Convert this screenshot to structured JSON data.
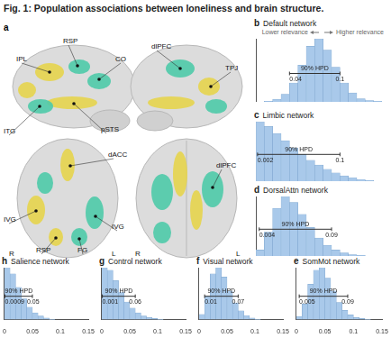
{
  "title": "Fig. 1: Population associations between loneliness and brain structure.",
  "panel_a": {
    "letter": "a",
    "labels": [
      "IPL",
      "RSP",
      "CO",
      "pSTS",
      "dlPFC",
      "TPJ",
      "ITG",
      "dACC",
      "dlPFC",
      "IVG",
      "IVG",
      "RSP",
      "FG",
      "R",
      "L",
      "R",
      "L"
    ]
  },
  "chart_data": [
    {
      "panel": "b",
      "type": "histogram",
      "title": "Default network",
      "annotations": [
        "Lower relevance",
        "Higher relevance"
      ],
      "bins": [
        0,
        0.01,
        0.02,
        0.03,
        0.04,
        0.05,
        0.06,
        0.07,
        0.08,
        0.09,
        0.1,
        0.11,
        0.12,
        0.13,
        0.14,
        0.15
      ],
      "counts": [
        0,
        1,
        4,
        12,
        30,
        58,
        88,
        100,
        82,
        55,
        30,
        14,
        5,
        2,
        1
      ],
      "color": "#a9c9ea",
      "xlim": [
        0,
        0.15
      ],
      "ylim": [
        0,
        100
      ],
      "tick_labels": false,
      "grid": false,
      "hpd": {
        "label": "90% HPD",
        "low": 0.04,
        "high": 0.1
      }
    },
    {
      "panel": "c",
      "type": "histogram",
      "title": "Limbic network",
      "bins": [
        0,
        0.01,
        0.02,
        0.03,
        0.04,
        0.05,
        0.06,
        0.07,
        0.08,
        0.09,
        0.1,
        0.11,
        0.12,
        0.13,
        0.14,
        0.15
      ],
      "counts": [
        100,
        92,
        80,
        68,
        56,
        45,
        35,
        27,
        20,
        14,
        9,
        6,
        3,
        1,
        0
      ],
      "color": "#a9c9ea",
      "xlim": [
        0,
        0.15
      ],
      "ylim": [
        0,
        100
      ],
      "tick_labels": false,
      "grid": false,
      "hpd": {
        "label": "90% HPD",
        "low": 0.002,
        "high": 0.1
      }
    },
    {
      "panel": "d",
      "type": "histogram",
      "title": "DorsalAttn network",
      "bins": [
        0,
        0.01,
        0.02,
        0.03,
        0.04,
        0.05,
        0.06,
        0.07,
        0.08,
        0.09,
        0.1,
        0.11,
        0.12,
        0.13,
        0.14,
        0.15
      ],
      "counts": [
        10,
        40,
        80,
        100,
        90,
        70,
        48,
        30,
        18,
        10,
        5,
        2,
        1,
        0,
        0
      ],
      "color": "#a9c9ea",
      "xlim": [
        0,
        0.15
      ],
      "ylim": [
        0,
        100
      ],
      "tick_labels": false,
      "grid": false,
      "hpd": {
        "label": "90% HPD",
        "low": 0.004,
        "high": 0.09
      }
    },
    {
      "panel": "h",
      "type": "histogram",
      "title": "Salience network",
      "bins": [
        0,
        0.01,
        0.02,
        0.03,
        0.04,
        0.05,
        0.06,
        0.07,
        0.08,
        0.09,
        0.1,
        0.11,
        0.12,
        0.13,
        0.14,
        0.15
      ],
      "counts": [
        100,
        88,
        62,
        40,
        24,
        13,
        7,
        3,
        1,
        0,
        0,
        0,
        0,
        0,
        0
      ],
      "color": "#a9c9ea",
      "xlim": [
        0,
        0.15
      ],
      "ylim": [
        0,
        100
      ],
      "xticks": [
        0,
        0.05,
        0.1,
        0.15
      ],
      "tick_labels": "x",
      "grid": false,
      "hpd": {
        "label": "90% HPD",
        "low": 0.0009,
        "high": 0.05
      }
    },
    {
      "panel": "g",
      "type": "histogram",
      "title": "Control network",
      "bins": [
        0,
        0.01,
        0.02,
        0.03,
        0.04,
        0.05,
        0.06,
        0.07,
        0.08,
        0.09,
        0.1,
        0.11,
        0.12,
        0.13,
        0.14,
        0.15
      ],
      "counts": [
        100,
        95,
        75,
        52,
        34,
        22,
        13,
        7,
        4,
        2,
        1,
        0,
        0,
        0,
        0
      ],
      "color": "#a9c9ea",
      "xlim": [
        0,
        0.15
      ],
      "ylim": [
        0,
        100
      ],
      "xticks": [
        0,
        0.05,
        0.1,
        0.15
      ],
      "tick_labels": "x",
      "grid": false,
      "hpd": {
        "label": "90% HPD",
        "low": 0.001,
        "high": 0.06
      }
    },
    {
      "panel": "f",
      "type": "histogram",
      "title": "Visual network",
      "bins": [
        0,
        0.01,
        0.02,
        0.03,
        0.04,
        0.05,
        0.06,
        0.07,
        0.08,
        0.09,
        0.1,
        0.11,
        0.12,
        0.13,
        0.14,
        0.15
      ],
      "counts": [
        10,
        45,
        88,
        100,
        82,
        55,
        32,
        17,
        8,
        3,
        1,
        0,
        0,
        0,
        0
      ],
      "color": "#a9c9ea",
      "xlim": [
        0,
        0.15
      ],
      "ylim": [
        0,
        100
      ],
      "xticks": [
        0,
        0.05,
        0.1,
        0.15
      ],
      "tick_labels": "x",
      "grid": false,
      "hpd": {
        "label": "90% HPD",
        "low": 0.01,
        "high": 0.07
      }
    },
    {
      "panel": "e",
      "type": "histogram",
      "title": "SomMot network",
      "bins": [
        0,
        0.01,
        0.02,
        0.03,
        0.04,
        0.05,
        0.06,
        0.07,
        0.08,
        0.09,
        0.1,
        0.11,
        0.12,
        0.13,
        0.14,
        0.15
      ],
      "counts": [
        6,
        30,
        68,
        95,
        100,
        80,
        55,
        33,
        18,
        9,
        4,
        2,
        1,
        0,
        0
      ],
      "color": "#a9c9ea",
      "xlim": [
        0,
        0.15
      ],
      "ylim": [
        0,
        100
      ],
      "xticks": [
        0,
        0.05,
        0.1,
        0.15
      ],
      "tick_labels": "x",
      "grid": false,
      "hpd": {
        "label": "90% HPD",
        "low": 0.005,
        "high": 0.09
      }
    }
  ]
}
